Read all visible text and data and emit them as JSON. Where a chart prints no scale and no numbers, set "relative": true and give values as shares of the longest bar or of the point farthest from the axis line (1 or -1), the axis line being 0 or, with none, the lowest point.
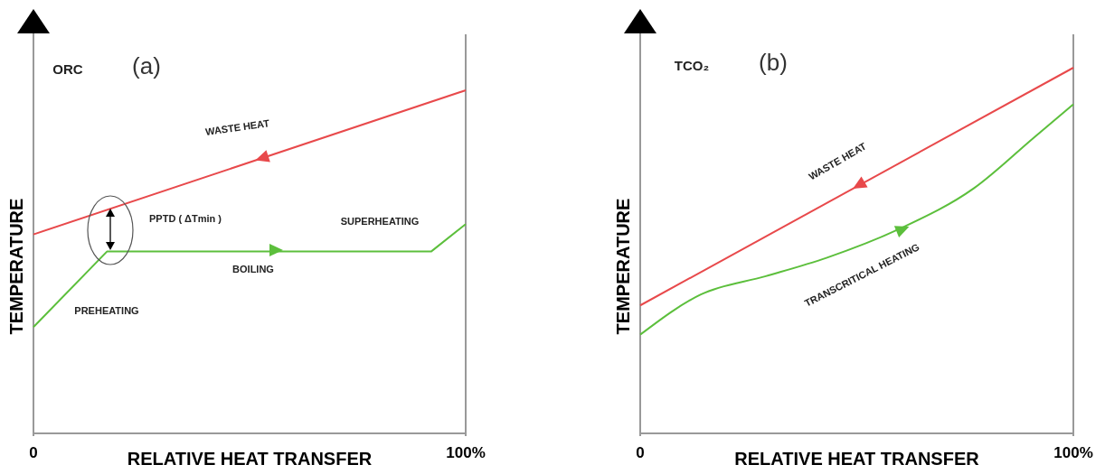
{
  "chart_data": [
    {
      "type": "line",
      "title": "(a)",
      "xlabel": "RELATIVE HEAT TRANSFER",
      "ylabel": "TEMPERATURE",
      "relative": true,
      "xlim": [
        0,
        100
      ],
      "xticks": [
        0,
        {
          "value": 100,
          "label": "100%"
        }
      ],
      "annotations": [
        "ORC",
        "WASTE HEAT",
        "PPTD ( ΔTmin )",
        "SUPERHEATING",
        "BOILING",
        "PREHEATING"
      ],
      "series": [
        {
          "color": "#e8494b",
          "x": [
            0,
            100
          ],
          "values": [
            0.58,
            1
          ]
        },
        {
          "color": "#5cbf3c",
          "x": [
            0,
            17,
            92,
            100
          ],
          "values": [
            0.31,
            0.53,
            0.53,
            0.61
          ]
        }
      ]
    },
    {
      "type": "line",
      "title": "(b)",
      "xlabel": "RELATIVE HEAT TRANSFER",
      "ylabel": "TEMPERATURE",
      "relative": true,
      "xlim": [
        0,
        100
      ],
      "xticks": [
        0,
        {
          "value": 100,
          "label": "100%"
        }
      ],
      "annotations": [
        "TCO₂",
        "WASTE HEAT",
        "TRANSCRITICAL HEATING"
      ],
      "series": [
        {
          "color": "#e8494b",
          "x": [
            0,
            100
          ],
          "values": [
            0.35,
            1
          ]
        },
        {
          "color": "#5cbf3c",
          "x": [
            0,
            14,
            29,
            43,
            60,
            77,
            91,
            100
          ],
          "values": [
            0.27,
            0.38,
            0.43,
            0.48,
            0.56,
            0.67,
            0.81,
            0.9
          ]
        }
      ]
    }
  ]
}
